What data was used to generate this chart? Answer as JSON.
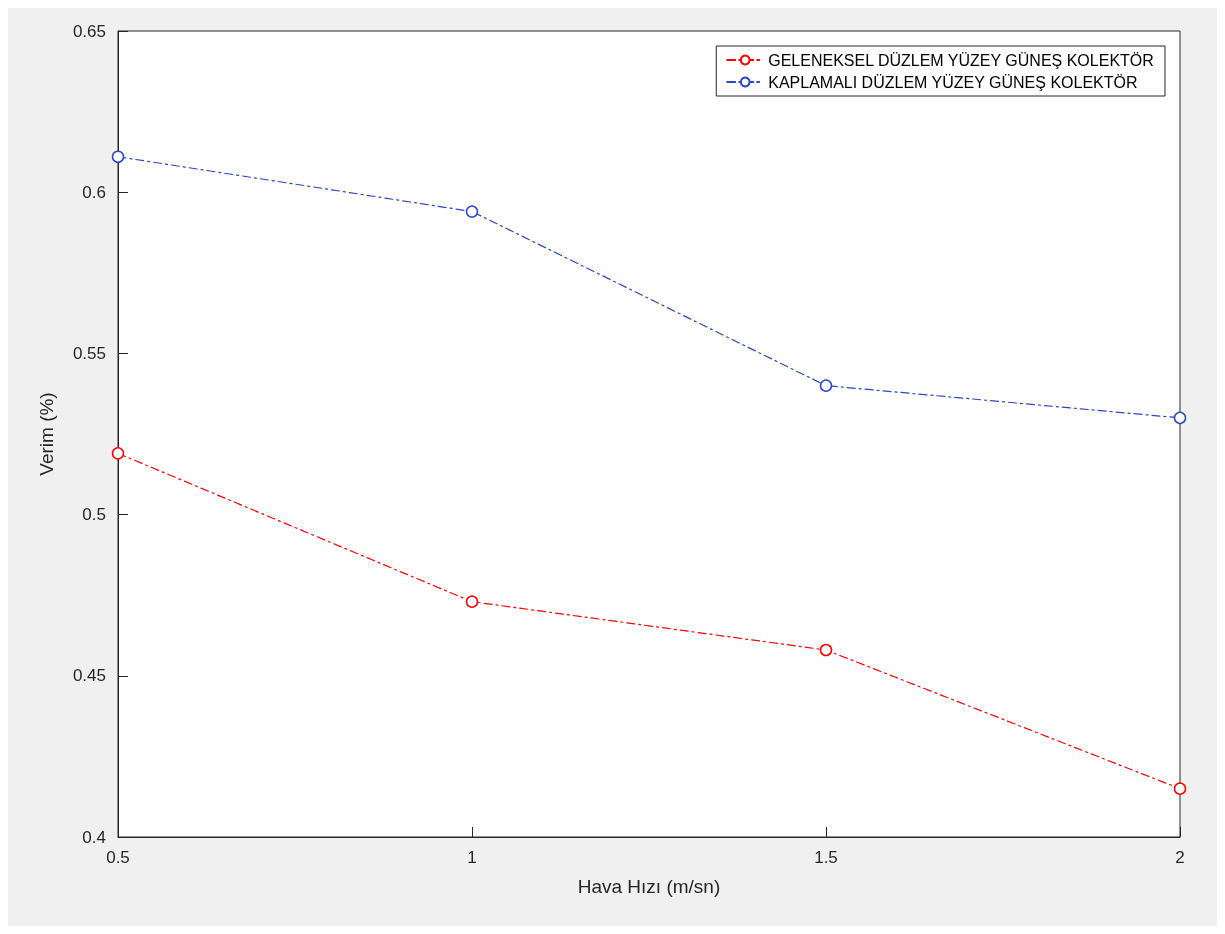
{
  "chart_data": {
    "type": "line",
    "xlabel": "Hava Hızı (m/sn)",
    "ylabel": "Verim (%)",
    "x": [
      0.5,
      1,
      1.5,
      2
    ],
    "series": [
      {
        "name": "GELENEKSEL DÜZLEM YÜZEY GÜNEŞ KOLEKTÖR",
        "color": "#ff0000",
        "values": [
          0.519,
          0.473,
          0.458,
          0.415
        ]
      },
      {
        "name": "KAPLAMALI DÜZLEM YÜZEY GÜNEŞ KOLEKTÖR",
        "color": "#2a45c8",
        "values": [
          0.611,
          0.594,
          0.54,
          0.53
        ]
      }
    ],
    "xlim": [
      0.5,
      2
    ],
    "xticks": [
      0.5,
      1,
      1.5,
      2
    ],
    "ylim": [
      0.4,
      0.65
    ],
    "yticks": [
      0.4,
      0.45,
      0.5,
      0.55,
      0.6,
      0.65
    ],
    "grid": false,
    "legend": "top right",
    "marker": "circle",
    "line_style": "dashed"
  }
}
